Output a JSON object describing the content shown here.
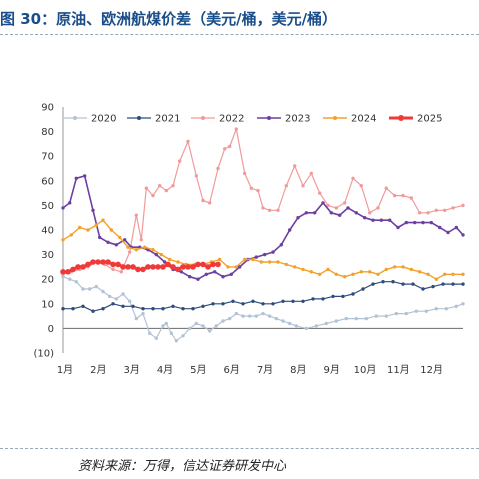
{
  "figure": {
    "title": "图 30：原油、欧洲航煤价差（美元/桶，美元/桶）",
    "source": "资料来源：万得，信达证券研发中心"
  },
  "chart_data": {
    "type": "line",
    "xlabel": "",
    "ylabel": "",
    "ylim": [
      -10,
      90
    ],
    "y_ticks": [
      "(10)",
      "0",
      "10",
      "20",
      "30",
      "40",
      "50",
      "60",
      "70",
      "80",
      "90"
    ],
    "x_range": [
      1,
      13
    ],
    "x_ticks": [
      "1月",
      "2月",
      "3月",
      "4月",
      "5月",
      "6月",
      "7月",
      "8月",
      "9月",
      "10月",
      "11月",
      "12月"
    ],
    "grid": false,
    "legend": "top",
    "series": [
      {
        "name": "2020",
        "color": "#b3c3d6",
        "marker": "dot",
        "width": 1.2,
        "x": [
          1,
          1.2,
          1.4,
          1.6,
          1.8,
          2,
          2.2,
          2.4,
          2.6,
          2.8,
          3,
          3.2,
          3.4,
          3.6,
          3.8,
          4,
          4.1,
          4.25,
          4.4,
          4.6,
          4.8,
          5,
          5.2,
          5.4,
          5.6,
          5.8,
          6,
          6.2,
          6.4,
          6.6,
          6.8,
          7,
          7.2,
          7.4,
          7.6,
          7.8,
          8,
          8.3,
          8.6,
          8.9,
          9.2,
          9.5,
          9.8,
          10.1,
          10.4,
          10.7,
          11,
          11.3,
          11.6,
          11.9,
          12.2,
          12.5,
          12.8,
          13
        ],
        "y": [
          21,
          20,
          19,
          16,
          16,
          17,
          15,
          13,
          12,
          14,
          11,
          4,
          6,
          -2,
          -4,
          1,
          2,
          -2,
          -5,
          -3,
          0,
          2,
          1,
          -1,
          1,
          3,
          4,
          6,
          5,
          5,
          5,
          6,
          5,
          4,
          3,
          2,
          1,
          0,
          1,
          2,
          3,
          4,
          4,
          4,
          5,
          5,
          6,
          6,
          7,
          7,
          8,
          8,
          9,
          10
        ]
      },
      {
        "name": "2021",
        "color": "#2f4d7a",
        "marker": "dot",
        "width": 1.2,
        "x": [
          1,
          1.3,
          1.6,
          1.9,
          2.2,
          2.5,
          2.8,
          3.1,
          3.4,
          3.7,
          4,
          4.3,
          4.6,
          4.9,
          5.2,
          5.5,
          5.8,
          6.1,
          6.4,
          6.7,
          7,
          7.3,
          7.6,
          7.9,
          8.2,
          8.5,
          8.8,
          9.1,
          9.4,
          9.7,
          10,
          10.3,
          10.6,
          10.9,
          11.2,
          11.5,
          11.8,
          12.1,
          12.4,
          12.7,
          13
        ],
        "y": [
          8,
          8,
          9,
          7,
          8,
          10,
          9,
          9,
          8,
          8,
          8,
          9,
          8,
          8,
          9,
          10,
          10,
          11,
          10,
          11,
          10,
          10,
          11,
          11,
          11,
          12,
          12,
          13,
          13,
          14,
          16,
          18,
          19,
          19,
          18,
          18,
          16,
          17,
          18,
          18,
          18
        ]
      },
      {
        "name": "2022",
        "color": "#f19a9a",
        "marker": "dot",
        "width": 1.2,
        "x": [
          1,
          1.25,
          1.5,
          1.75,
          2,
          2.25,
          2.5,
          2.75,
          3,
          3.2,
          3.35,
          3.5,
          3.7,
          3.9,
          4.1,
          4.3,
          4.5,
          4.75,
          5,
          5.2,
          5.4,
          5.65,
          5.85,
          6,
          6.2,
          6.45,
          6.65,
          6.85,
          7,
          7.2,
          7.45,
          7.7,
          7.95,
          8.2,
          8.45,
          8.7,
          8.95,
          9.2,
          9.45,
          9.7,
          9.95,
          10.2,
          10.45,
          10.7,
          10.95,
          11.2,
          11.45,
          11.7,
          11.95,
          12.2,
          12.45,
          12.7,
          13
        ],
        "y": [
          22,
          23,
          24,
          25,
          27,
          26,
          24,
          23,
          31,
          46,
          36,
          57,
          54,
          58,
          56,
          58,
          68,
          76,
          62,
          52,
          51,
          65,
          73,
          74,
          81,
          63,
          57,
          56,
          49,
          48,
          48,
          58,
          66,
          58,
          63,
          55,
          50,
          49,
          51,
          61,
          58,
          47,
          49,
          57,
          54,
          54,
          53,
          47,
          47,
          48,
          48,
          49,
          50
        ]
      },
      {
        "name": "2023",
        "color": "#6c3fa0",
        "marker": "dot",
        "width": 1.6,
        "x": [
          1,
          1.2,
          1.4,
          1.65,
          1.9,
          2.1,
          2.35,
          2.6,
          2.85,
          3.05,
          3.3,
          3.55,
          3.8,
          4.05,
          4.3,
          4.55,
          4.8,
          5.05,
          5.3,
          5.55,
          5.8,
          6.05,
          6.3,
          6.55,
          6.8,
          7.05,
          7.3,
          7.55,
          7.8,
          8.05,
          8.3,
          8.55,
          8.8,
          9.05,
          9.3,
          9.55,
          9.8,
          10.05,
          10.3,
          10.55,
          10.8,
          11.05,
          11.3,
          11.55,
          11.8,
          12.05,
          12.3,
          12.55,
          12.8,
          13
        ],
        "y": [
          49,
          51,
          61,
          62,
          48,
          37,
          35,
          34,
          36,
          33,
          33,
          32,
          30,
          27,
          24,
          23,
          21,
          20,
          22,
          23,
          21,
          22,
          25,
          28,
          29,
          30,
          31,
          34,
          40,
          45,
          47,
          47,
          51,
          47,
          46,
          49,
          47,
          45,
          44,
          44,
          44,
          41,
          43,
          43,
          43,
          43,
          41,
          39,
          41,
          38
        ]
      },
      {
        "name": "2024",
        "color": "#f3a12b",
        "marker": "dot",
        "width": 1.4,
        "x": [
          1,
          1.25,
          1.5,
          1.75,
          2,
          2.2,
          2.45,
          2.7,
          2.95,
          3.2,
          3.45,
          3.7,
          3.95,
          4.2,
          4.45,
          4.7,
          4.95,
          5.2,
          5.45,
          5.7,
          5.95,
          6.2,
          6.45,
          6.7,
          6.95,
          7.2,
          7.45,
          7.7,
          7.95,
          8.2,
          8.45,
          8.7,
          8.95,
          9.2,
          9.45,
          9.7,
          9.95,
          10.2,
          10.45,
          10.7,
          10.95,
          11.2,
          11.45,
          11.7,
          11.95,
          12.2,
          12.45,
          12.7,
          13
        ],
        "y": [
          36,
          38,
          41,
          40,
          42,
          44,
          40,
          37,
          33,
          32,
          33,
          32,
          30,
          28,
          27,
          26,
          26,
          26,
          27,
          28,
          25,
          25,
          28,
          28,
          27,
          27,
          27,
          26,
          25,
          24,
          23,
          22,
          24,
          22,
          21,
          22,
          23,
          23,
          22,
          24,
          25,
          25,
          24,
          23,
          22,
          20,
          22,
          22,
          22
        ]
      },
      {
        "name": "2025",
        "color": "#f03a3a",
        "marker": "dot",
        "width": 3,
        "x": [
          1,
          1.15,
          1.3,
          1.45,
          1.6,
          1.75,
          1.9,
          2.05,
          2.2,
          2.35,
          2.5,
          2.65,
          2.8,
          2.95,
          3.1,
          3.25,
          3.4,
          3.55,
          3.7,
          3.85,
          4,
          4.15,
          4.3,
          4.45,
          4.6,
          4.75,
          4.9,
          5.05,
          5.2,
          5.35,
          5.5,
          5.65
        ],
        "y": [
          23,
          23,
          24,
          25,
          25,
          26,
          27,
          27,
          27,
          27,
          26,
          26,
          25,
          25,
          25,
          24,
          24,
          25,
          25,
          25,
          25,
          26,
          25,
          24,
          25,
          25,
          25,
          26,
          26,
          25,
          26,
          26
        ]
      }
    ]
  }
}
